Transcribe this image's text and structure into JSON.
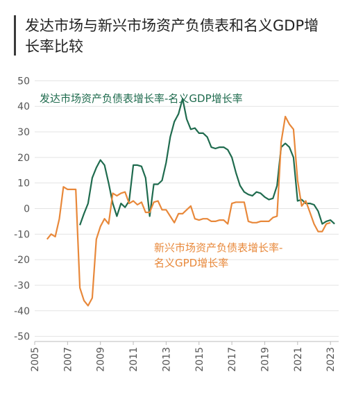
{
  "page": {
    "title": "发达市场与新兴市场资产负债表和名义GDP增长率比较"
  },
  "chart_data": {
    "type": "line",
    "title": "发达市场与新兴市场资产负债表和名义GDP增长率比较",
    "xlabel": "",
    "ylabel": "",
    "xlim": [
      2005,
      2023.5
    ],
    "ylim": [
      -52,
      52
    ],
    "x_ticks": [
      "2005",
      "2007",
      "2009",
      "2011",
      "2013",
      "2015",
      "2017",
      "2019",
      "2021",
      "2023"
    ],
    "y_ticks": [
      "50",
      "40",
      "30",
      "20",
      "10",
      "0",
      "-10",
      "-20",
      "-30",
      "-40",
      "-50"
    ],
    "grid": "horizontal",
    "series": [
      {
        "name": "发达市场资产负债表增长率-名义GDP增长率",
        "color": "#1f6b4e",
        "x": [
          2007.75,
          2008.0,
          2008.25,
          2008.5,
          2008.75,
          2009.0,
          2009.25,
          2009.5,
          2009.75,
          2010.0,
          2010.25,
          2010.5,
          2010.75,
          2011.0,
          2011.25,
          2011.5,
          2011.75,
          2012.0,
          2012.25,
          2012.5,
          2012.75,
          2013.0,
          2013.25,
          2013.5,
          2013.75,
          2014.0,
          2014.25,
          2014.5,
          2014.75,
          2015.0,
          2015.25,
          2015.5,
          2015.75,
          2016.0,
          2016.25,
          2016.5,
          2016.75,
          2017.0,
          2017.25,
          2017.5,
          2017.75,
          2018.0,
          2018.25,
          2018.5,
          2018.75,
          2019.0,
          2019.25,
          2019.5,
          2019.75,
          2020.0,
          2020.25,
          2020.5,
          2020.75,
          2021.0,
          2021.25,
          2021.5,
          2021.75,
          2022.0,
          2022.25,
          2022.5,
          2022.75,
          2023.0,
          2023.25
        ],
        "values": [
          -6.5,
          -2,
          2,
          12,
          16,
          19,
          17,
          10,
          2,
          -3,
          2,
          0.5,
          3,
          17,
          17,
          16.5,
          12,
          -3,
          9.5,
          9.5,
          11,
          18,
          28,
          34,
          37,
          43,
          35,
          31,
          31.5,
          29.5,
          29.5,
          28,
          24,
          23.5,
          24,
          24,
          23,
          20,
          14,
          9,
          6.5,
          5.5,
          5,
          6.5,
          6,
          4.5,
          3.5,
          4,
          9,
          24,
          25.5,
          24,
          20,
          3,
          3.5,
          2,
          2,
          1.5,
          -1,
          -6,
          -5,
          -4.5,
          -6
        ]
      },
      {
        "name": "新兴市场资产负债表增长率-名义GPD增长率",
        "color": "#e8883a",
        "x": [
          2005.75,
          2006.0,
          2006.25,
          2006.5,
          2006.75,
          2007.0,
          2007.25,
          2007.5,
          2007.75,
          2008.0,
          2008.25,
          2008.5,
          2008.75,
          2009.0,
          2009.25,
          2009.5,
          2009.75,
          2010.0,
          2010.25,
          2010.5,
          2010.75,
          2011.0,
          2011.25,
          2011.5,
          2011.75,
          2012.0,
          2012.25,
          2012.5,
          2012.75,
          2013.0,
          2013.25,
          2013.5,
          2013.75,
          2014.0,
          2014.25,
          2014.5,
          2014.75,
          2015.0,
          2015.25,
          2015.5,
          2015.75,
          2016.0,
          2016.25,
          2016.5,
          2016.75,
          2017.0,
          2017.25,
          2017.5,
          2017.75,
          2018.0,
          2018.25,
          2018.5,
          2018.75,
          2019.0,
          2019.25,
          2019.5,
          2019.75,
          2020.0,
          2020.25,
          2020.5,
          2020.75,
          2021.0,
          2021.25,
          2021.5,
          2021.75,
          2022.0,
          2022.25,
          2022.5,
          2022.75,
          2023.0
        ],
        "values": [
          -12,
          -10,
          -11,
          -4,
          8.5,
          7.5,
          7.5,
          7.5,
          -31,
          -36,
          -38,
          -35,
          -12,
          -7,
          -4,
          -6,
          6,
          5,
          6,
          6.5,
          2,
          3,
          1.5,
          2.5,
          -1.5,
          -1.5,
          2.5,
          3,
          -0.5,
          -0.5,
          -3,
          -5.5,
          -2,
          -2,
          -0.5,
          1,
          -4,
          -4.5,
          -4,
          -4,
          -5,
          -5,
          -4.5,
          -4.5,
          -6,
          2,
          2.5,
          2.5,
          2.5,
          -5,
          -5.5,
          -5.5,
          -5,
          -5,
          -5,
          -3.5,
          -3,
          26,
          36,
          33,
          31,
          11,
          1,
          3,
          -1.5,
          -6,
          -9,
          -9,
          -6,
          -5.5
        ]
      }
    ]
  }
}
